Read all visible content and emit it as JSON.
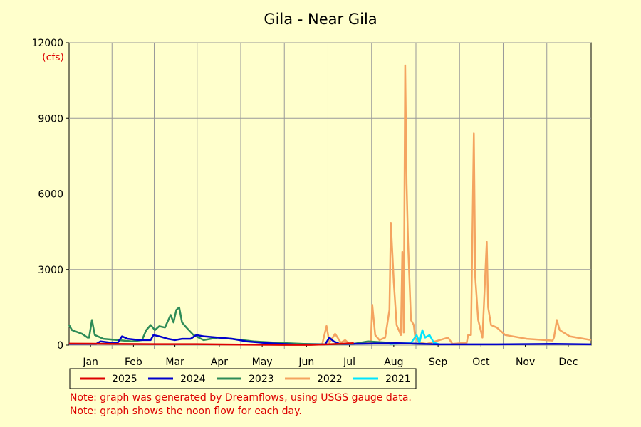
{
  "chart_data": {
    "type": "line",
    "title": "Gila - Near Gila",
    "y_unit": "(cfs)",
    "xlim": [
      1,
      366
    ],
    "xticks": [
      {
        "value": 16,
        "label": "Jan"
      },
      {
        "value": 46,
        "label": "Feb"
      },
      {
        "value": 75,
        "label": "Mar"
      },
      {
        "value": 106,
        "label": "Apr"
      },
      {
        "value": 136,
        "label": "May"
      },
      {
        "value": 167,
        "label": "Jun"
      },
      {
        "value": 197,
        "label": "Jul"
      },
      {
        "value": 228,
        "label": "Aug"
      },
      {
        "value": 259,
        "label": "Sep"
      },
      {
        "value": 289,
        "label": "Oct"
      },
      {
        "value": 320,
        "label": "Nov"
      },
      {
        "value": 350,
        "label": "Dec"
      }
    ],
    "ylim": [
      0,
      12000
    ],
    "yticks": [
      0,
      3000,
      6000,
      9000,
      12000
    ],
    "grid": true,
    "series": [
      {
        "name": "2025",
        "color": "#dd0000",
        "x": [
          1,
          30,
          60,
          90,
          120,
          150,
          170,
          185,
          200
        ],
        "values": [
          60,
          50,
          40,
          40,
          20,
          10,
          10,
          40,
          80
        ]
      },
      {
        "name": "2024",
        "color": "#0000cc",
        "x": [
          1,
          20,
          23,
          30,
          35,
          38,
          42,
          50,
          58,
          60,
          64,
          70,
          75,
          80,
          86,
          90,
          95,
          105,
          115,
          125,
          140,
          160,
          180,
          183,
          186,
          190,
          210,
          230,
          260,
          300,
          340,
          366
        ],
        "values": [
          50,
          50,
          150,
          100,
          100,
          350,
          250,
          200,
          200,
          400,
          350,
          250,
          200,
          250,
          250,
          400,
          350,
          300,
          250,
          150,
          80,
          20,
          30,
          300,
          150,
          50,
          60,
          80,
          30,
          30,
          50,
          30
        ]
      },
      {
        "name": "2023",
        "color": "#2e8b57",
        "x": [
          1,
          3,
          10,
          14,
          15,
          17,
          19,
          25,
          35,
          45,
          52,
          55,
          58,
          61,
          64,
          68,
          72,
          74,
          76,
          78,
          80,
          83,
          88,
          95,
          105,
          115,
          130,
          145,
          165,
          180,
          200,
          210,
          230,
          250
        ],
        "values": [
          800,
          600,
          450,
          300,
          300,
          1000,
          400,
          250,
          200,
          150,
          200,
          600,
          800,
          600,
          750,
          700,
          1200,
          900,
          1400,
          1500,
          900,
          700,
          400,
          200,
          300,
          250,
          150,
          100,
          50,
          30,
          50,
          150,
          80,
          50
        ]
      },
      {
        "name": "2022",
        "color": "#f4a460",
        "x": [
          178,
          181,
          183,
          187,
          191,
          194,
          197,
          212,
          213,
          215,
          218,
          222,
          225,
          226,
          228,
          230,
          233,
          234,
          235,
          236,
          237,
          238,
          240,
          242,
          243,
          246,
          251,
          266,
          269,
          279,
          280,
          282,
          284,
          285,
          287,
          290,
          293,
          294,
          296,
          300,
          306,
          321,
          339,
          340,
          342,
          344,
          351,
          366
        ],
        "values": [
          50,
          760,
          100,
          450,
          100,
          200,
          50,
          100,
          1600,
          400,
          200,
          300,
          1400,
          4850,
          2500,
          800,
          400,
          3700,
          500,
          11100,
          6400,
          4100,
          1000,
          800,
          300,
          100,
          50,
          300,
          50,
          100,
          400,
          400,
          8400,
          2700,
          1000,
          300,
          4100,
          1500,
          800,
          700,
          400,
          250,
          180,
          300,
          1000,
          600,
          350,
          200
        ]
      },
      {
        "name": "2021",
        "color": "#00e5ff",
        "x": [
          225,
          240,
          244,
          246,
          248,
          250,
          253,
          256,
          260
        ],
        "values": [
          50,
          80,
          400,
          100,
          600,
          300,
          400,
          100,
          30
        ]
      }
    ],
    "notes": [
      "Note: graph was generated by Dreamflows, using USGS gauge data.",
      "Note: graph shows the noon flow for each day."
    ]
  }
}
